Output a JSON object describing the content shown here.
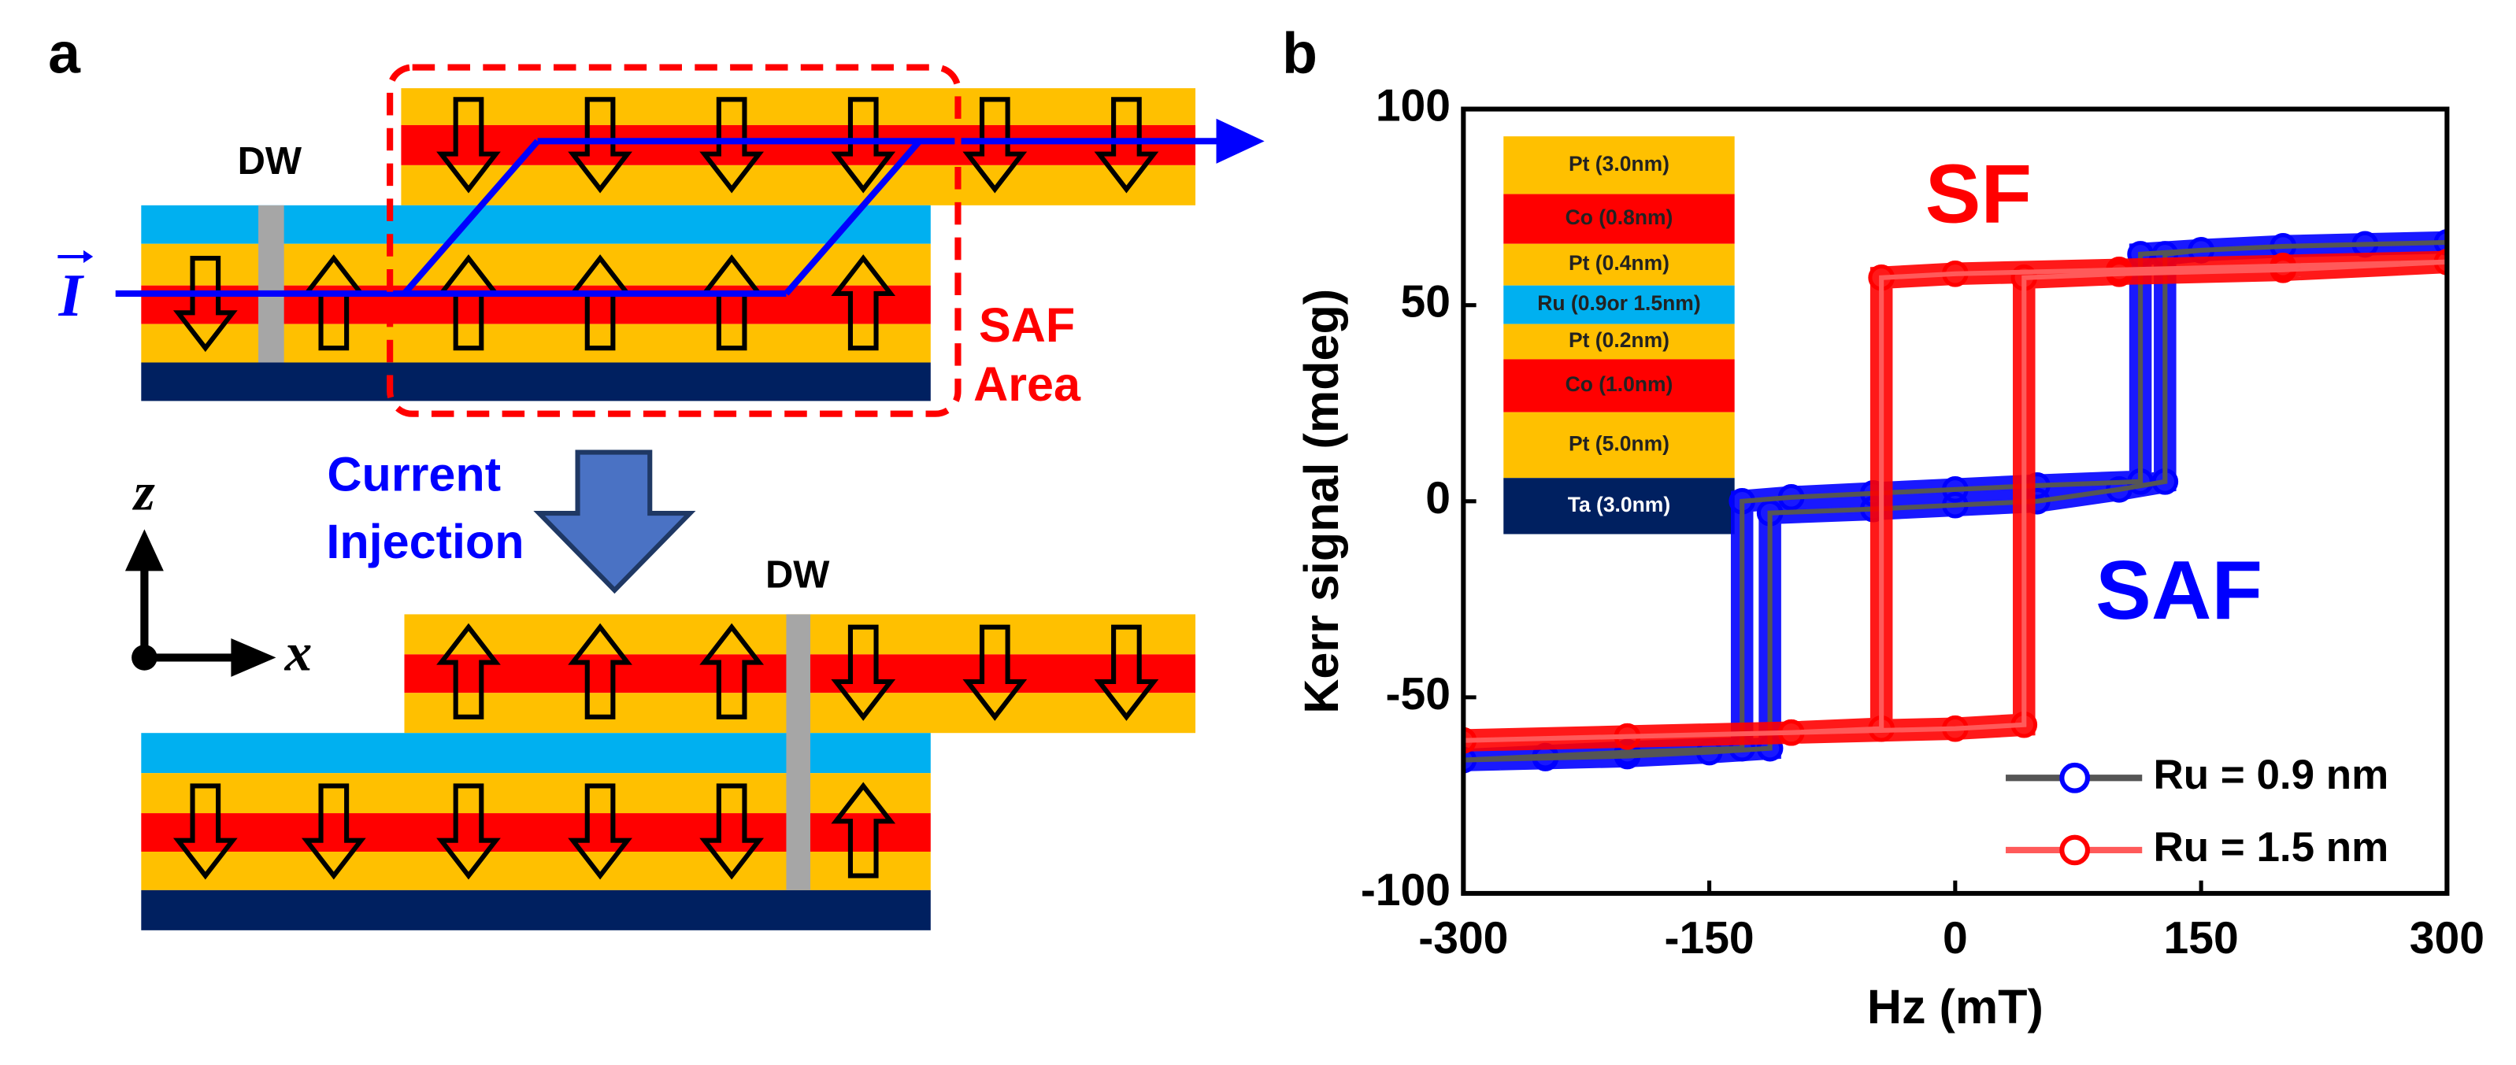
{
  "panel_a": {
    "label": "a",
    "dw_top": "DW",
    "current": "I",
    "saf_area": [
      "SAF",
      "Area"
    ],
    "injection": [
      "Current",
      "Injection"
    ],
    "axis_z": "z",
    "axis_x": "x",
    "dw_bottom": "DW"
  },
  "chart_data": {
    "type": "line",
    "panel_label": "b",
    "xlabel": "Hz (mT)",
    "ylabel": "Kerr signal (mdeg)",
    "xlim": [
      -300,
      300
    ],
    "xticks": [
      -300,
      -150,
      0,
      150,
      300
    ],
    "ylim": [
      -100,
      100
    ],
    "yticks": [
      -100,
      -50,
      0,
      50,
      100
    ],
    "legend": "lower right",
    "series": [
      {
        "name": "Ru = 0.9 nm",
        "color": "#555555",
        "marker_color": "#0000ff",
        "x": [
          -300,
          -250,
          -200,
          -150,
          -113,
          -113,
          -50,
          0,
          50,
          100,
          128,
          128,
          150,
          200,
          250,
          300,
          250,
          200,
          150,
          113,
          113,
          50,
          0,
          -50,
          -100,
          -130,
          -130,
          -200,
          -250,
          -300
        ],
        "values": [
          -66,
          -65.5,
          -65,
          -64,
          -63,
          -3,
          -2,
          -1,
          0,
          3,
          5,
          63,
          64,
          65,
          65.5,
          66,
          65.5,
          65,
          64,
          63,
          5,
          4,
          3,
          2,
          1,
          0,
          -63,
          -64,
          -65,
          -66
        ]
      },
      {
        "name": "Ru = 1.5 nm",
        "color": "#ff5a5a",
        "marker_color": "#ff0000",
        "x": [
          -300,
          -200,
          -100,
          0,
          42,
          42,
          100,
          200,
          300,
          200,
          100,
          0,
          -45,
          -45,
          -100,
          -200,
          -300
        ],
        "values": [
          -61,
          -60,
          -59,
          -58,
          -57,
          57,
          58,
          59,
          61,
          60,
          59,
          58,
          57,
          -58,
          -59,
          -60,
          -61
        ]
      }
    ],
    "annotations": [
      {
        "text": "SF",
        "color": "#ff0000"
      },
      {
        "text": "SAF",
        "color": "#0000ff"
      }
    ],
    "inset": [
      {
        "label": "Pt (3.0nm)",
        "color": "#ffc000"
      },
      {
        "label": "Co (0.8nm)",
        "color": "#ff0000"
      },
      {
        "label": "Pt (0.4nm)",
        "color": "#ffc000"
      },
      {
        "label": "Ru (0.9or 1.5nm)",
        "color": "#00b0f0"
      },
      {
        "label": "Pt (0.2nm)",
        "color": "#ffc000"
      },
      {
        "label": "Co (1.0nm)",
        "color": "#ff0000"
      },
      {
        "label": "Pt (5.0nm)",
        "color": "#ffc000"
      },
      {
        "label": "Ta (3.0nm)",
        "color": "#002060"
      }
    ]
  }
}
